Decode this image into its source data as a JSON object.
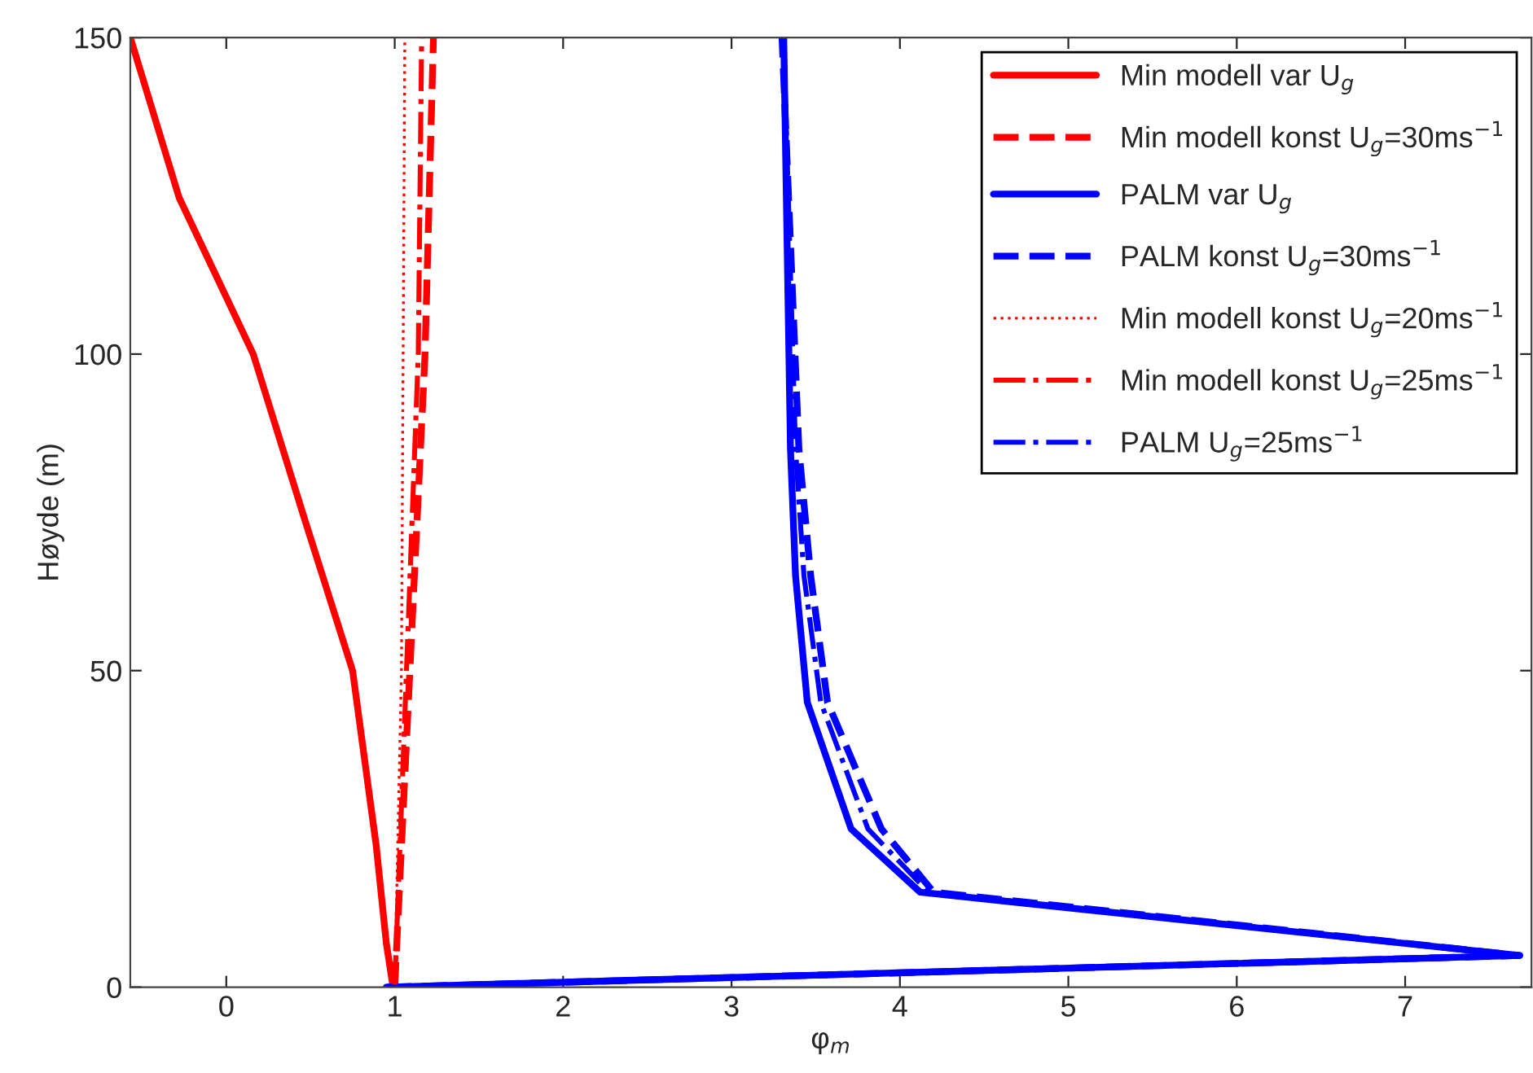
{
  "chart_data": {
    "type": "line",
    "xlabel": "φ$_{m}$",
    "ylabel": "Høyde (m)",
    "xlim": [
      -0.57,
      7.75
    ],
    "xticks": [
      0,
      1,
      2,
      3,
      4,
      5,
      6,
      7
    ],
    "ylim": [
      0,
      150
    ],
    "yticks": [
      0,
      50,
      100,
      150
    ],
    "grid": false,
    "legend": "top right",
    "series": [
      {
        "name": "Min modell var U$_{g}$",
        "color": "#ff0000",
        "line_style": "solid",
        "x": [
          0.99,
          0.95,
          0.89,
          0.75,
          0.47,
          0.16,
          -0.28,
          -0.57
        ],
        "values": [
          0,
          7,
          22.4,
          50,
          73.5,
          100,
          124.7,
          150
        ]
      },
      {
        "name": "Min modell konst U$_{g}$=30ms$^{−1}$",
        "color": "#ff0000",
        "line_style": "dashed",
        "x": [
          1.0,
          1.09,
          1.18,
          1.23
        ],
        "values": [
          0,
          50,
          100,
          150
        ]
      },
      {
        "name": "PALM var U$_{g}$",
        "color": "#0000ff",
        "line_style": "solid",
        "x": [
          0.95,
          7.68,
          4.12,
          3.71,
          3.45,
          3.38,
          3.35,
          3.31
        ],
        "values": [
          0,
          5,
          15,
          25,
          45,
          65,
          85,
          150
        ]
      },
      {
        "name": "PALM konst U$_{g}$=30ms$^{−1}$",
        "color": "#0000ff",
        "line_style": "dashed",
        "x": [
          0.95,
          7.68,
          4.2,
          3.89,
          3.57,
          3.47,
          3.4,
          3.3
        ],
        "values": [
          0,
          5,
          15,
          25,
          45,
          65,
          85,
          150
        ]
      },
      {
        "name": "Min modell konst U$_{g}$=20ms$^{−1}$",
        "color": "#ff0000",
        "line_style": "dotted",
        "x": [
          1.0,
          1.04,
          1.05,
          1.06
        ],
        "values": [
          0,
          50,
          100,
          150
        ]
      },
      {
        "name": "Min modell konst U$_{g}$=25ms$^{−1}$",
        "color": "#ff0000",
        "line_style": "dashdot",
        "x": [
          1.0,
          1.07,
          1.14,
          1.16
        ],
        "values": [
          0,
          50,
          100,
          150
        ]
      },
      {
        "name": "PALM U$_{g}$=25ms$^{−1}$",
        "color": "#0000ff",
        "line_style": "dashdot",
        "x": [
          0.95,
          7.68,
          4.17,
          3.81,
          3.53,
          3.43,
          3.38,
          3.31
        ],
        "values": [
          0,
          5,
          15,
          25,
          45,
          65,
          85,
          150
        ]
      }
    ]
  }
}
